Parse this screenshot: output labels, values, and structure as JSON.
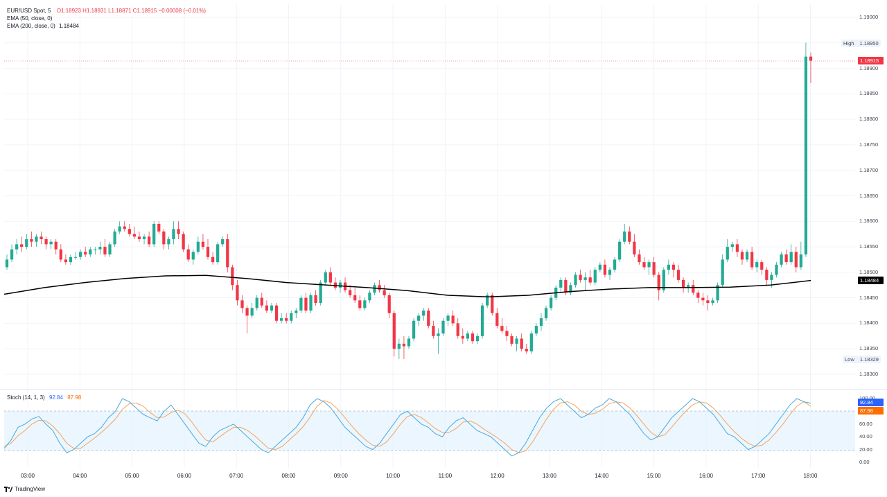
{
  "legend": {
    "symbol": "EUR/USD Spot, 5",
    "ohlc": "O1.18923  H1.18931  L1.18871  C1.18915  −0.00008 (−0.01%)",
    "ema50": "EMA (50, close, 0)",
    "ema200_name": "EMA (200, close, 0)",
    "ema200_value": "1.18484"
  },
  "stoch_legend": {
    "name": "Stoch (14, 1, 3)",
    "k": "92.84",
    "d": "87.98"
  },
  "price_axis": [
    "1.19000",
    "1.18950",
    "1.18900",
    "1.18850",
    "1.18800",
    "1.18750",
    "1.18700",
    "1.18650",
    "1.18600",
    "1.18550",
    "1.18500",
    "1.18450",
    "1.18400",
    "1.18350",
    "1.18300"
  ],
  "stoch_axis": [
    "100.00",
    "80.00",
    "60.00",
    "40.00",
    "20.00",
    "0.00"
  ],
  "time_axis": [
    "03:00",
    "04:00",
    "05:00",
    "06:00",
    "07:00",
    "08:00",
    "09:00",
    "10:00",
    "11:00",
    "12:00",
    "13:00",
    "14:00",
    "15:00",
    "16:00",
    "17:00",
    "18:00"
  ],
  "badges": {
    "high_label": "High",
    "high_value": "1.18950",
    "low_label": "Low",
    "low_value": "1.18329",
    "last_price": "1.18915",
    "ema_value": "1.18484",
    "stoch_k": "92.84",
    "stoch_d": "87.98"
  },
  "colors": {
    "up": "#22ab94",
    "down": "#f23645",
    "ema": "#000000",
    "stoch_k": "#4ca9d8",
    "stoch_d": "#f7a35c",
    "band": "#e3f2fd"
  },
  "brand": "TradingView",
  "chart_data": {
    "type": "candlestick",
    "symbol": "EUR/USD",
    "interval": "5",
    "ylim": [
      1.1828,
      1.1902
    ],
    "ohlc": [
      [
        1.1851,
        1.18535,
        1.18505,
        1.18525
      ],
      [
        1.18525,
        1.18555,
        1.1852,
        1.18545
      ],
      [
        1.18545,
        1.18565,
        1.18535,
        1.18555
      ],
      [
        1.18555,
        1.1857,
        1.1854,
        1.1855
      ],
      [
        1.1855,
        1.18575,
        1.18545,
        1.18565
      ],
      [
        1.18565,
        1.1858,
        1.1855,
        1.1856
      ],
      [
        1.1856,
        1.18575,
        1.1855,
        1.1857
      ],
      [
        1.1857,
        1.1858,
        1.18555,
        1.18565
      ],
      [
        1.18565,
        1.1857,
        1.18545,
        1.18555
      ],
      [
        1.18555,
        1.18565,
        1.18545,
        1.1856
      ],
      [
        1.1856,
        1.18565,
        1.18535,
        1.18545
      ],
      [
        1.18545,
        1.18555,
        1.1852,
        1.18525
      ],
      [
        1.18525,
        1.18535,
        1.18515,
        1.1852
      ],
      [
        1.1852,
        1.18535,
        1.18515,
        1.1853
      ],
      [
        1.1853,
        1.1854,
        1.18525,
        1.1853
      ],
      [
        1.1853,
        1.18545,
        1.18525,
        1.1854
      ],
      [
        1.1854,
        1.1855,
        1.1853,
        1.18535
      ],
      [
        1.18535,
        1.1855,
        1.1853,
        1.18545
      ],
      [
        1.18545,
        1.1855,
        1.18535,
        1.18545
      ],
      [
        1.18545,
        1.1856,
        1.18535,
        1.1855
      ],
      [
        1.1855,
        1.18565,
        1.1853,
        1.18535
      ],
      [
        1.18535,
        1.1856,
        1.1853,
        1.18555
      ],
      [
        1.18555,
        1.18585,
        1.1855,
        1.1858
      ],
      [
        1.1858,
        1.186,
        1.18575,
        1.1859
      ],
      [
        1.1859,
        1.186,
        1.1858,
        1.18585
      ],
      [
        1.18585,
        1.18595,
        1.1857,
        1.18575
      ],
      [
        1.18575,
        1.1859,
        1.18565,
        1.1857
      ],
      [
        1.1857,
        1.1858,
        1.1856,
        1.18565
      ],
      [
        1.18565,
        1.18575,
        1.18555,
        1.1857
      ],
      [
        1.1857,
        1.1858,
        1.1855,
        1.18555
      ],
      [
        1.18555,
        1.186,
        1.1855,
        1.18595
      ],
      [
        1.18595,
        1.186,
        1.18575,
        1.1858
      ],
      [
        1.1858,
        1.18585,
        1.18545,
        1.18555
      ],
      [
        1.18555,
        1.1857,
        1.18545,
        1.18565
      ],
      [
        1.18565,
        1.186,
        1.18555,
        1.18585
      ],
      [
        1.18585,
        1.186,
        1.18565,
        1.18575
      ],
      [
        1.18575,
        1.1858,
        1.1854,
        1.18545
      ],
      [
        1.18545,
        1.18555,
        1.1852,
        1.18525
      ],
      [
        1.18525,
        1.18545,
        1.18515,
        1.1854
      ],
      [
        1.1854,
        1.1857,
        1.18535,
        1.1856
      ],
      [
        1.1856,
        1.18575,
        1.18545,
        1.1855
      ],
      [
        1.1855,
        1.18565,
        1.18525,
        1.1853
      ],
      [
        1.1853,
        1.1854,
        1.18515,
        1.1852
      ],
      [
        1.1852,
        1.1856,
        1.18515,
        1.18555
      ],
      [
        1.18555,
        1.1857,
        1.1855,
        1.18565
      ],
      [
        1.18565,
        1.18575,
        1.185,
        1.1851
      ],
      [
        1.1851,
        1.18515,
        1.18465,
        1.18475
      ],
      [
        1.18475,
        1.18485,
        1.18435,
        1.18445
      ],
      [
        1.18445,
        1.18455,
        1.1842,
        1.1843
      ],
      [
        1.1843,
        1.18435,
        1.1838,
        1.18415
      ],
      [
        1.18415,
        1.1844,
        1.1841,
        1.1843
      ],
      [
        1.1843,
        1.18455,
        1.18425,
        1.1845
      ],
      [
        1.1845,
        1.1846,
        1.1843,
        1.18435
      ],
      [
        1.18435,
        1.18445,
        1.1842,
        1.18425
      ],
      [
        1.18425,
        1.1844,
        1.1842,
        1.18435
      ],
      [
        1.18435,
        1.1844,
        1.184,
        1.18405
      ],
      [
        1.18405,
        1.1842,
        1.184,
        1.1841
      ],
      [
        1.1841,
        1.1842,
        1.184,
        1.18405
      ],
      [
        1.18405,
        1.18425,
        1.184,
        1.1842
      ],
      [
        1.1842,
        1.1843,
        1.1841,
        1.18425
      ],
      [
        1.18425,
        1.18455,
        1.1842,
        1.1845
      ],
      [
        1.1845,
        1.1846,
        1.1842,
        1.18425
      ],
      [
        1.18425,
        1.1846,
        1.1842,
        1.18455
      ],
      [
        1.18455,
        1.18465,
        1.18435,
        1.1844
      ],
      [
        1.1844,
        1.18485,
        1.18435,
        1.1848
      ],
      [
        1.1848,
        1.18505,
        1.18475,
        1.185
      ],
      [
        1.185,
        1.1851,
        1.18475,
        1.1848
      ],
      [
        1.1848,
        1.1849,
        1.18465,
        1.1847
      ],
      [
        1.1847,
        1.18485,
        1.1846,
        1.1848
      ],
      [
        1.1848,
        1.1849,
        1.1846,
        1.18465
      ],
      [
        1.18465,
        1.18475,
        1.1845,
        1.18455
      ],
      [
        1.18455,
        1.1847,
        1.1844,
        1.18445
      ],
      [
        1.18445,
        1.18455,
        1.18425,
        1.1843
      ],
      [
        1.1843,
        1.1845,
        1.18425,
        1.18445
      ],
      [
        1.18445,
        1.18465,
        1.1844,
        1.1846
      ],
      [
        1.1846,
        1.1848,
        1.18455,
        1.18475
      ],
      [
        1.18475,
        1.18485,
        1.1846,
        1.18465
      ],
      [
        1.18465,
        1.18475,
        1.1845,
        1.18455
      ],
      [
        1.18455,
        1.1846,
        1.1841,
        1.1842
      ],
      [
        1.1842,
        1.18425,
        1.18335,
        1.1835
      ],
      [
        1.1835,
        1.1837,
        1.1833,
        1.1836
      ],
      [
        1.1836,
        1.18375,
        1.1833,
        1.18355
      ],
      [
        1.18355,
        1.18375,
        1.1835,
        1.1837
      ],
      [
        1.1837,
        1.1841,
        1.18365,
        1.18405
      ],
      [
        1.18405,
        1.1842,
        1.18395,
        1.18415
      ],
      [
        1.18415,
        1.1843,
        1.18405,
        1.18425
      ],
      [
        1.18425,
        1.1843,
        1.1839,
        1.18395
      ],
      [
        1.18395,
        1.18405,
        1.1837,
        1.18375
      ],
      [
        1.18375,
        1.1839,
        1.1834,
        1.1838
      ],
      [
        1.1838,
        1.1841,
        1.18375,
        1.18405
      ],
      [
        1.18405,
        1.1842,
        1.18395,
        1.18415
      ],
      [
        1.18415,
        1.18425,
        1.18395,
        1.184
      ],
      [
        1.184,
        1.1841,
        1.1837,
        1.18375
      ],
      [
        1.18375,
        1.1839,
        1.1836,
        1.1837
      ],
      [
        1.1837,
        1.18385,
        1.18365,
        1.1838
      ],
      [
        1.1838,
        1.18385,
        1.1836,
        1.18365
      ],
      [
        1.18365,
        1.1838,
        1.1836,
        1.18375
      ],
      [
        1.18375,
        1.1844,
        1.1837,
        1.18435
      ],
      [
        1.18435,
        1.1846,
        1.1843,
        1.18455
      ],
      [
        1.18455,
        1.1846,
        1.18415,
        1.1842
      ],
      [
        1.1842,
        1.1843,
        1.1839,
        1.18395
      ],
      [
        1.18395,
        1.1841,
        1.1838,
        1.18385
      ],
      [
        1.18385,
        1.18395,
        1.18365,
        1.18375
      ],
      [
        1.18375,
        1.1838,
        1.18355,
        1.1836
      ],
      [
        1.1836,
        1.18375,
        1.18345,
        1.1837
      ],
      [
        1.1837,
        1.1838,
        1.18345,
        1.1835
      ],
      [
        1.1835,
        1.1836,
        1.1834,
        1.18345
      ],
      [
        1.18345,
        1.18385,
        1.1834,
        1.1838
      ],
      [
        1.1838,
        1.184,
        1.18375,
        1.18395
      ],
      [
        1.18395,
        1.1842,
        1.18385,
        1.1841
      ],
      [
        1.1841,
        1.18435,
        1.18405,
        1.1843
      ],
      [
        1.1843,
        1.18455,
        1.18425,
        1.1845
      ],
      [
        1.1845,
        1.18475,
        1.18445,
        1.1847
      ],
      [
        1.1847,
        1.1849,
        1.1846,
        1.18485
      ],
      [
        1.18485,
        1.1849,
        1.18455,
        1.1846
      ],
      [
        1.1846,
        1.1848,
        1.18455,
        1.18475
      ],
      [
        1.18475,
        1.185,
        1.1847,
        1.18495
      ],
      [
        1.18495,
        1.18505,
        1.1848,
        1.18485
      ],
      [
        1.18485,
        1.185,
        1.18465,
        1.1849
      ],
      [
        1.1849,
        1.18505,
        1.18475,
        1.1848
      ],
      [
        1.1848,
        1.1851,
        1.18475,
        1.18505
      ],
      [
        1.18505,
        1.1852,
        1.185,
        1.18515
      ],
      [
        1.18515,
        1.18525,
        1.1849,
        1.18495
      ],
      [
        1.18495,
        1.1851,
        1.18485,
        1.18505
      ],
      [
        1.18505,
        1.1853,
        1.185,
        1.18525
      ],
      [
        1.18525,
        1.18565,
        1.1852,
        1.1856
      ],
      [
        1.1856,
        1.18595,
        1.18555,
        1.1858
      ],
      [
        1.1858,
        1.1859,
        1.18555,
        1.1856
      ],
      [
        1.1856,
        1.18575,
        1.1853,
        1.18535
      ],
      [
        1.18535,
        1.18545,
        1.18515,
        1.1852
      ],
      [
        1.1852,
        1.1853,
        1.18505,
        1.1851
      ],
      [
        1.1851,
        1.18525,
        1.18495,
        1.1852
      ],
      [
        1.1852,
        1.1853,
        1.1849,
        1.18495
      ],
      [
        1.18495,
        1.185,
        1.18445,
        1.18465
      ],
      [
        1.18465,
        1.1851,
        1.1846,
        1.18505
      ],
      [
        1.18505,
        1.18525,
        1.18495,
        1.18515
      ],
      [
        1.18515,
        1.1852,
        1.1849,
        1.18505
      ],
      [
        1.18505,
        1.18515,
        1.1848,
        1.18485
      ],
      [
        1.18485,
        1.1849,
        1.1846,
        1.1847
      ],
      [
        1.1847,
        1.1848,
        1.1846,
        1.18475
      ],
      [
        1.18475,
        1.18485,
        1.18455,
        1.1846
      ],
      [
        1.1846,
        1.18465,
        1.1844,
        1.1845
      ],
      [
        1.1845,
        1.1846,
        1.18435,
        1.18445
      ],
      [
        1.18445,
        1.18455,
        1.18425,
        1.1844
      ],
      [
        1.1844,
        1.1845,
        1.18435,
        1.18445
      ],
      [
        1.18445,
        1.1848,
        1.1844,
        1.18475
      ],
      [
        1.18475,
        1.18535,
        1.1847,
        1.18525
      ],
      [
        1.18525,
        1.18565,
        1.1852,
        1.1855
      ],
      [
        1.1855,
        1.1856,
        1.1854,
        1.18555
      ],
      [
        1.18555,
        1.18565,
        1.1853,
        1.1854
      ],
      [
        1.1854,
        1.18545,
        1.18515,
        1.18525
      ],
      [
        1.18525,
        1.18545,
        1.1852,
        1.1854
      ],
      [
        1.1854,
        1.1855,
        1.18505,
        1.1851
      ],
      [
        1.1851,
        1.18525,
        1.185,
        1.1852
      ],
      [
        1.1852,
        1.18525,
        1.18495,
        1.18505
      ],
      [
        1.18505,
        1.1851,
        1.18475,
        1.18485
      ],
      [
        1.18485,
        1.185,
        1.1847,
        1.18495
      ],
      [
        1.18495,
        1.1852,
        1.1849,
        1.18515
      ],
      [
        1.18515,
        1.1854,
        1.1851,
        1.18535
      ],
      [
        1.18535,
        1.18545,
        1.18515,
        1.1852
      ],
      [
        1.1852,
        1.18555,
        1.18515,
        1.1854
      ],
      [
        1.1854,
        1.1855,
        1.185,
        1.1851
      ],
      [
        1.1851,
        1.1856,
        1.18505,
        1.18535
      ],
      [
        1.18535,
        1.1895,
        1.1853,
        1.18923
      ],
      [
        1.18923,
        1.18931,
        1.18871,
        1.18915
      ]
    ],
    "ema200": [
      1.18457,
      1.1847,
      1.1848,
      1.18488,
      1.18493,
      1.18494,
      1.18488,
      1.1848,
      1.18475,
      1.1847,
      1.18464,
      1.18455,
      1.18452,
      1.18455,
      1.18462,
      1.18467,
      1.1847,
      1.1847,
      1.18471,
      1.18475,
      1.18484
    ],
    "stoch_k": [
      22,
      35,
      55,
      60,
      68,
      72,
      60,
      50,
      30,
      15,
      20,
      30,
      40,
      45,
      55,
      70,
      80,
      100,
      95,
      85,
      75,
      70,
      65,
      80,
      90,
      75,
      60,
      45,
      30,
      25,
      40,
      50,
      55,
      60,
      50,
      40,
      30,
      20,
      15,
      25,
      35,
      45,
      55,
      70,
      90,
      100,
      95,
      85,
      70,
      55,
      45,
      35,
      25,
      20,
      30,
      45,
      60,
      75,
      80,
      70,
      60,
      55,
      45,
      40,
      55,
      65,
      70,
      60,
      50,
      45,
      40,
      30,
      20,
      10,
      15,
      30,
      50,
      70,
      85,
      95,
      100,
      90,
      80,
      70,
      75,
      85,
      90,
      100,
      95,
      85,
      75,
      60,
      45,
      35,
      40,
      55,
      70,
      80,
      90,
      100,
      95,
      85,
      75,
      60,
      45,
      40,
      30,
      20,
      25,
      35,
      45,
      60,
      75,
      90,
      100,
      95,
      92.84
    ],
    "stoch_d": [
      25,
      30,
      42,
      50,
      60,
      66,
      65,
      57,
      45,
      30,
      22,
      22,
      30,
      38,
      47,
      57,
      68,
      83,
      92,
      93,
      88,
      78,
      70,
      71,
      78,
      82,
      76,
      63,
      48,
      35,
      32,
      40,
      48,
      55,
      55,
      50,
      42,
      32,
      22,
      20,
      25,
      35,
      45,
      56,
      71,
      88,
      97,
      93,
      83,
      70,
      57,
      45,
      35,
      27,
      25,
      32,
      45,
      60,
      72,
      75,
      70,
      62,
      53,
      47,
      47,
      53,
      63,
      65,
      60,
      52,
      45,
      38,
      30,
      20,
      15,
      18,
      32,
      50,
      68,
      83,
      93,
      95,
      90,
      80,
      75,
      77,
      83,
      92,
      95,
      93,
      85,
      73,
      60,
      47,
      40,
      43,
      55,
      68,
      80,
      90,
      95,
      93,
      85,
      73,
      60,
      48,
      38,
      30,
      25,
      27,
      35,
      47,
      60,
      75,
      88,
      95,
      87.98
    ]
  }
}
